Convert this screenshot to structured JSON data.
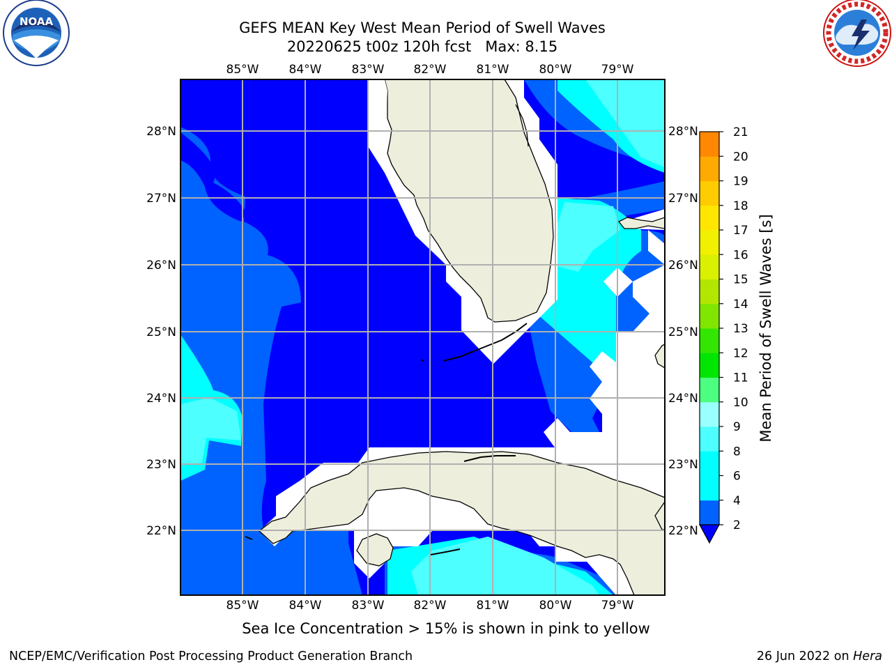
{
  "title_line1": "GEFS MEAN Key West Mean Period of Swell Waves",
  "title_line2_run": "20220625 t00z 120h fcst",
  "title_line2_max": "Max: 8.15",
  "caption": "Sea Ice Concentration > 15% is shown in pink to yellow",
  "footer_left": "NCEP/EMC/Verification Post Processing Product Generation Branch",
  "footer_date": "26 Jun 2022 on",
  "footer_host": "Hera",
  "logos": {
    "left": "noaa-logo",
    "right": "nws-logo",
    "left_text": "NOAA"
  },
  "map": {
    "lon_ticks": [
      "85°W",
      "84°W",
      "83°W",
      "82°W",
      "81°W",
      "80°W",
      "79°W"
    ],
    "lat_ticks": [
      "28°N",
      "27°N",
      "26°N",
      "25°N",
      "24°N",
      "23°N",
      "22°N"
    ],
    "land_color": "#eeeedd",
    "no_data_color": "#ffffff"
  },
  "colorbar": {
    "label": "Mean Period of Swell Waves [s]",
    "levels": [
      2,
      3,
      4,
      5,
      6,
      7,
      8,
      9,
      10,
      11,
      12,
      13,
      14,
      15,
      16,
      17,
      18,
      19,
      20,
      21
    ],
    "tick_labels": [
      "2",
      "4",
      "6",
      "8",
      "9",
      "10",
      "11",
      "12",
      "13",
      "14",
      "15",
      "16",
      "17",
      "18",
      "19",
      "20",
      "21"
    ],
    "colors": [
      "#0063ff",
      "#00ffff",
      "#00ffff",
      "#4dffff",
      "#99ffff",
      "#4dff80",
      "#00e600",
      "#33e600",
      "#80e600",
      "#b3e600",
      "#d9f000",
      "#f0f000",
      "#ffe600",
      "#ffcc00",
      "#ffaa00",
      "#ff8800",
      "#ff6600",
      "#ff4400",
      "#ff1100",
      "#ff0000"
    ],
    "under_color": "#0000ff"
  },
  "legend_colors": {
    "c2_4": "#0000ff",
    "c4_6": "#0063ff",
    "c6_8": "#00ffff",
    "c8_9": "#4dffff"
  }
}
